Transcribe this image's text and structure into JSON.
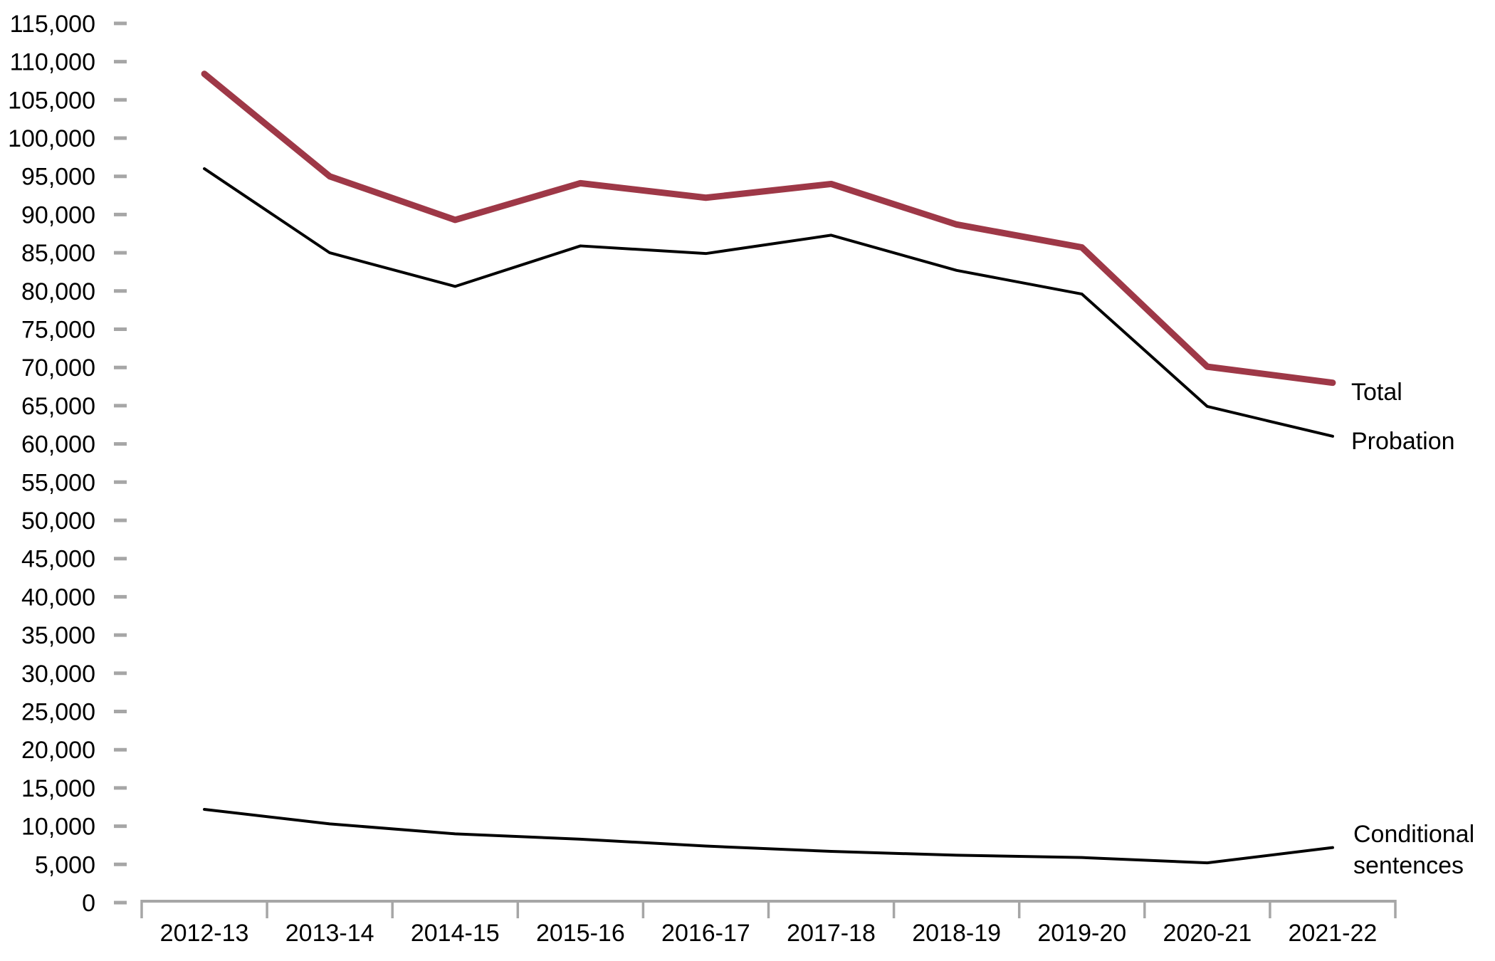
{
  "page": {
    "background": "#FFFFFF"
  },
  "chart_data": {
    "type": "line",
    "categories": [
      "2012-13",
      "2013-14",
      "2014-15",
      "2015-16",
      "2016-17",
      "2017-18",
      "2018-19",
      "2019-20",
      "2020-21",
      "2021-22"
    ],
    "series": [
      {
        "name": "Total",
        "color": "#9E3847",
        "stroke_width": 9,
        "values": [
          108400,
          95000,
          89300,
          94100,
          92200,
          94000,
          88700,
          85700,
          70100,
          68000
        ]
      },
      {
        "name": "Probation",
        "color": "#000000",
        "stroke_width": 4,
        "values": [
          96000,
          85000,
          80600,
          85900,
          84900,
          87300,
          82700,
          79600,
          64900,
          61000
        ]
      },
      {
        "name": "Conditional sentences",
        "color": "#000000",
        "stroke_width": 4,
        "values": [
          12200,
          10300,
          9000,
          8300,
          7400,
          6700,
          6200,
          5900,
          5200,
          7200
        ]
      }
    ],
    "xlabel": "",
    "ylabel": "",
    "ylim": [
      0,
      115000
    ],
    "y_tick_step": 5000,
    "y_tick_labels": [
      "0",
      "5,000",
      "10,000",
      "15,000",
      "20,000",
      "25,000",
      "30,000",
      "35,000",
      "40,000",
      "45,000",
      "50,000",
      "55,000",
      "60,000",
      "65,000",
      "70,000",
      "75,000",
      "80,000",
      "85,000",
      "90,000",
      "95,000",
      "100,000",
      "105,000",
      "110,000",
      "115,000"
    ],
    "grid": "off",
    "legend_position": "end-of-line-labels",
    "axis_color": "#A6A6A6",
    "text_color": "#000000",
    "tick_font_size": 34
  }
}
